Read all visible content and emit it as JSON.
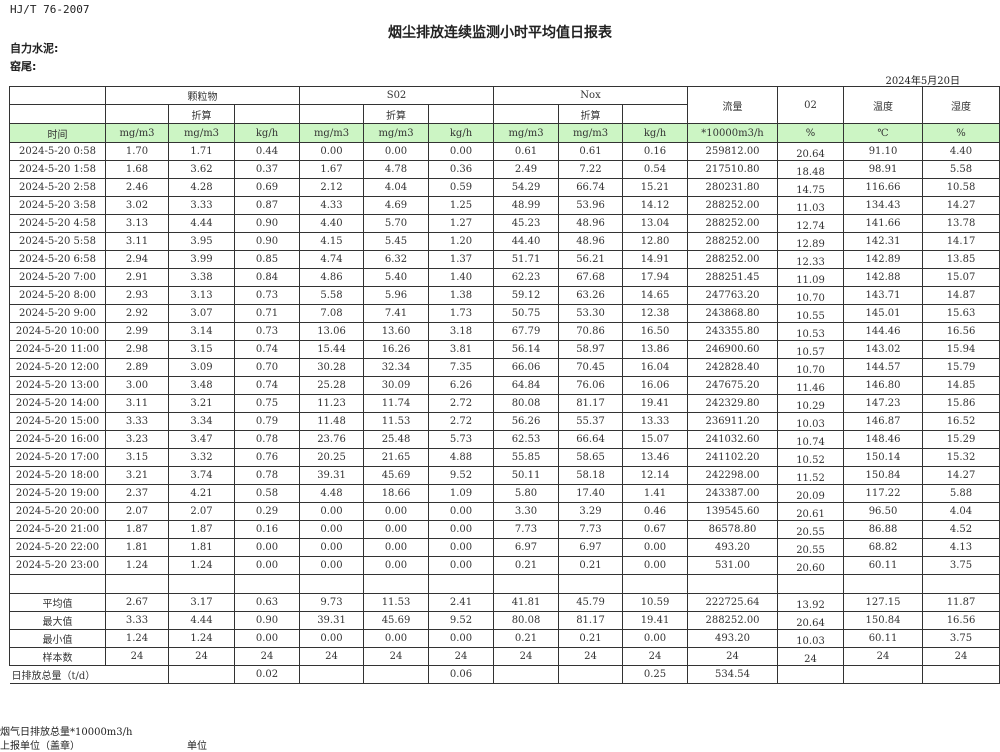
{
  "standard": "HJ/T  76-2007",
  "title": "烟尘排放连续监测小时平均值日报表",
  "company": "自力水泥:",
  "kiln": "窑尾:",
  "date": "2024年5月20日",
  "header": {
    "particulate": "颗粒物",
    "so2": "S02",
    "nox": "Nox",
    "flow": "流量",
    "o2": "02",
    "temp": "温度",
    "humidity": "湿度",
    "converted": "折算"
  },
  "units": [
    "时间",
    "mg/m3",
    "mg/m3",
    "kg/h",
    "mg/m3",
    "mg/m3",
    "kg/h",
    "mg/m3",
    "mg/m3",
    "kg/h",
    "*10000m3/h",
    "%",
    "℃",
    "%"
  ],
  "rows": [
    [
      "2024-5-20 0:58",
      "1.70",
      "1.71",
      "0.44",
      "0.00",
      "0.00",
      "0.00",
      "0.61",
      "0.61",
      "0.16",
      "259812.00",
      "20.64",
      "91.10",
      "4.40"
    ],
    [
      "2024-5-20 1:58",
      "1.68",
      "3.62",
      "0.37",
      "1.67",
      "4.78",
      "0.36",
      "2.49",
      "7.22",
      "0.54",
      "217510.80",
      "18.48",
      "98.91",
      "5.58"
    ],
    [
      "2024-5-20 2:58",
      "2.46",
      "4.28",
      "0.69",
      "2.12",
      "4.04",
      "0.59",
      "54.29",
      "66.74",
      "15.21",
      "280231.80",
      "14.75",
      "116.66",
      "10.58"
    ],
    [
      "2024-5-20 3:58",
      "3.02",
      "3.33",
      "0.87",
      "4.33",
      "4.69",
      "1.25",
      "48.99",
      "53.96",
      "14.12",
      "288252.00",
      "11.03",
      "134.43",
      "14.27"
    ],
    [
      "2024-5-20 4:58",
      "3.13",
      "4.44",
      "0.90",
      "4.40",
      "5.70",
      "1.27",
      "45.23",
      "48.96",
      "13.04",
      "288252.00",
      "12.74",
      "141.66",
      "13.78"
    ],
    [
      "2024-5-20 5:58",
      "3.11",
      "3.95",
      "0.90",
      "4.15",
      "5.45",
      "1.20",
      "44.40",
      "48.96",
      "12.80",
      "288252.00",
      "12.89",
      "142.31",
      "14.17"
    ],
    [
      "2024-5-20 6:58",
      "2.94",
      "3.99",
      "0.85",
      "4.74",
      "6.32",
      "1.37",
      "51.71",
      "56.21",
      "14.91",
      "288252.00",
      "12.33",
      "142.89",
      "13.85"
    ],
    [
      "2024-5-20 7:00",
      "2.91",
      "3.38",
      "0.84",
      "4.86",
      "5.40",
      "1.40",
      "62.23",
      "67.68",
      "17.94",
      "288251.45",
      "11.09",
      "142.88",
      "15.07"
    ],
    [
      "2024-5-20 8:00",
      "2.93",
      "3.13",
      "0.73",
      "5.58",
      "5.96",
      "1.38",
      "59.12",
      "63.26",
      "14.65",
      "247763.20",
      "10.70",
      "143.71",
      "14.87"
    ],
    [
      "2024-5-20 9:00",
      "2.92",
      "3.07",
      "0.71",
      "7.08",
      "7.41",
      "1.73",
      "50.75",
      "53.30",
      "12.38",
      "243868.80",
      "10.55",
      "145.01",
      "15.63"
    ],
    [
      "2024-5-20 10:00",
      "2.99",
      "3.14",
      "0.73",
      "13.06",
      "13.60",
      "3.18",
      "67.79",
      "70.86",
      "16.50",
      "243355.80",
      "10.53",
      "144.46",
      "16.56"
    ],
    [
      "2024-5-20 11:00",
      "2.98",
      "3.15",
      "0.74",
      "15.44",
      "16.26",
      "3.81",
      "56.14",
      "58.97",
      "13.86",
      "246900.60",
      "10.57",
      "143.02",
      "15.94"
    ],
    [
      "2024-5-20 12:00",
      "2.89",
      "3.09",
      "0.70",
      "30.28",
      "32.34",
      "7.35",
      "66.06",
      "70.45",
      "16.04",
      "242828.40",
      "10.70",
      "144.57",
      "15.79"
    ],
    [
      "2024-5-20 13:00",
      "3.00",
      "3.48",
      "0.74",
      "25.28",
      "30.09",
      "6.26",
      "64.84",
      "76.06",
      "16.06",
      "247675.20",
      "11.46",
      "146.80",
      "14.85"
    ],
    [
      "2024-5-20 14:00",
      "3.11",
      "3.21",
      "0.75",
      "11.23",
      "11.74",
      "2.72",
      "80.08",
      "81.17",
      "19.41",
      "242329.80",
      "10.29",
      "147.23",
      "15.86"
    ],
    [
      "2024-5-20 15:00",
      "3.33",
      "3.34",
      "0.79",
      "11.48",
      "11.53",
      "2.72",
      "56.26",
      "55.37",
      "13.33",
      "236911.20",
      "10.03",
      "146.87",
      "16.52"
    ],
    [
      "2024-5-20 16:00",
      "3.23",
      "3.47",
      "0.78",
      "23.76",
      "25.48",
      "5.73",
      "62.53",
      "66.64",
      "15.07",
      "241032.60",
      "10.74",
      "148.46",
      "15.29"
    ],
    [
      "2024-5-20 17:00",
      "3.15",
      "3.32",
      "0.76",
      "20.25",
      "21.65",
      "4.88",
      "55.85",
      "58.65",
      "13.46",
      "241102.20",
      "10.52",
      "150.14",
      "15.32"
    ],
    [
      "2024-5-20 18:00",
      "3.21",
      "3.74",
      "0.78",
      "39.31",
      "45.69",
      "9.52",
      "50.11",
      "58.18",
      "12.14",
      "242298.00",
      "11.52",
      "150.84",
      "14.27"
    ],
    [
      "2024-5-20 19:00",
      "2.37",
      "4.21",
      "0.58",
      "4.48",
      "18.66",
      "1.09",
      "5.80",
      "17.40",
      "1.41",
      "243387.00",
      "20.09",
      "117.22",
      "5.88"
    ],
    [
      "2024-5-20 20:00",
      "2.07",
      "2.07",
      "0.29",
      "0.00",
      "0.00",
      "0.00",
      "3.30",
      "3.29",
      "0.46",
      "139545.60",
      "20.61",
      "96.50",
      "4.04"
    ],
    [
      "2024-5-20 21:00",
      "1.87",
      "1.87",
      "0.16",
      "0.00",
      "0.00",
      "0.00",
      "7.73",
      "7.73",
      "0.67",
      "86578.80",
      "20.55",
      "86.88",
      "4.52"
    ],
    [
      "2024-5-20 22:00",
      "1.81",
      "1.81",
      "0.00",
      "0.00",
      "0.00",
      "0.00",
      "6.97",
      "6.97",
      "0.00",
      "493.20",
      "20.55",
      "68.82",
      "4.13"
    ],
    [
      "2024-5-20 23:00",
      "1.24",
      "1.24",
      "0.00",
      "0.00",
      "0.00",
      "0.00",
      "0.21",
      "0.21",
      "0.00",
      "531.00",
      "20.60",
      "60.11",
      "3.75"
    ]
  ],
  "summary": [
    [
      "平均值",
      "2.67",
      "3.17",
      "0.63",
      "9.73",
      "11.53",
      "2.41",
      "41.81",
      "45.79",
      "10.59",
      "222725.64",
      "13.92",
      "127.15",
      "11.87"
    ],
    [
      "最大值",
      "3.33",
      "4.44",
      "0.90",
      "39.31",
      "45.69",
      "9.52",
      "80.08",
      "81.17",
      "19.41",
      "288252.00",
      "20.64",
      "150.84",
      "16.56"
    ],
    [
      "最小值",
      "1.24",
      "1.24",
      "0.00",
      "0.00",
      "0.00",
      "0.00",
      "0.21",
      "0.21",
      "0.00",
      "493.20",
      "10.03",
      "60.11",
      "3.75"
    ],
    [
      "样本数",
      "24",
      "24",
      "24",
      "24",
      "24",
      "24",
      "24",
      "24",
      "24",
      "24",
      "24",
      "24",
      "24"
    ]
  ],
  "daily_total": {
    "label": "日排放总量（t/d）",
    "values": [
      "",
      "0.02",
      "",
      "",
      "0.06",
      "",
      "",
      "0.25",
      "534.54",
      "",
      "",
      ""
    ]
  },
  "footer": {
    "flue_gas_total": "烟气日排放总量*10000m3/h",
    "reporting_unit": "上报单位（盖章）",
    "unit": "单位"
  }
}
